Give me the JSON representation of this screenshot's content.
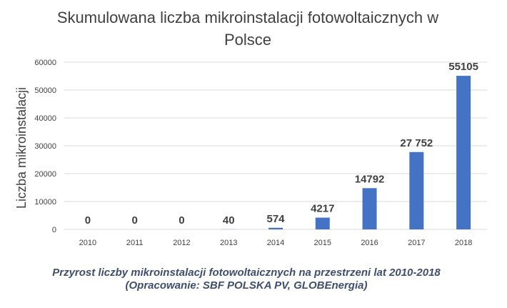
{
  "chart_data": {
    "type": "bar",
    "title": "Skumulowana liczba mikroinstalacji fotowoltaicznych w Polsce",
    "title_lines": [
      "Skumulowana liczba mikroinstalacji fotowoltaicznych w",
      "Polsce"
    ],
    "ylabel": "Liczba mikroinstalacji",
    "xlabel": "",
    "categories": [
      "2010",
      "2011",
      "2012",
      "2013",
      "2014",
      "2015",
      "2016",
      "2017",
      "2018"
    ],
    "values": [
      0,
      0,
      0,
      40,
      574,
      4217,
      14792,
      27752,
      55105
    ],
    "data_labels": [
      "0",
      "0",
      "0",
      "40",
      "574",
      "4217",
      "14792",
      "27 752",
      "55105"
    ],
    "ylim": [
      0,
      60000
    ],
    "yticks": [
      "0",
      "10000",
      "20000",
      "30000",
      "40000",
      "50000",
      "60000"
    ],
    "ytick_values": [
      0,
      10000,
      20000,
      30000,
      40000,
      50000,
      60000
    ],
    "grid": true,
    "legend": "none",
    "bar_color": "#4472c4",
    "grid_color": "#d9d9d9"
  },
  "caption": {
    "line1": "Przyrost liczby mikroinstalacji fotowoltaicznych na przestrzeni lat 2010-2018",
    "line2": "(Opracowanie: SBF POLSKA PV, GLOBEnergia)"
  }
}
